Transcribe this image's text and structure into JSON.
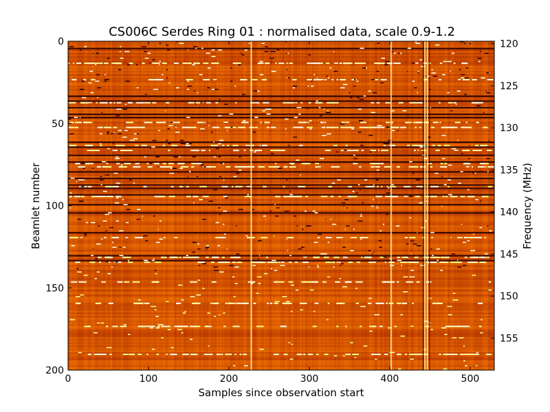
{
  "chart_data": {
    "type": "heatmap",
    "title": "CS006C Serdes Ring 01 : normalised data, scale 0.9-1.2",
    "xlabel": "Samples since observation start",
    "ylabel": "Beamlet number",
    "y2label": "Frequency (MHz)",
    "xlim": [
      0,
      530
    ],
    "ylim": [
      0,
      200
    ],
    "y2lim": [
      119.7,
      158.8
    ],
    "xticks": [
      0,
      100,
      200,
      300,
      400,
      500
    ],
    "xtick_labels": [
      "0",
      "100",
      "200",
      "300",
      "400",
      "500"
    ],
    "yticks": [
      0,
      50,
      100,
      150,
      200
    ],
    "ytick_labels": [
      "0",
      "50",
      "100",
      "150",
      "200"
    ],
    "y2ticks": [
      120,
      125,
      130,
      135,
      140,
      145,
      150,
      155
    ],
    "y2tick_labels": [
      "120",
      "125",
      "130",
      "135",
      "140",
      "145",
      "150",
      "155"
    ],
    "color_scale": {
      "min": 0.9,
      "max": 1.2,
      "colormap": "afmhot"
    },
    "dark_rows": [
      4,
      33,
      36,
      40,
      44,
      46,
      61,
      64,
      69,
      73,
      79,
      83,
      87,
      89,
      93,
      99,
      104,
      116,
      130,
      133
    ],
    "bright_rows": [
      13,
      23,
      37,
      49,
      52,
      63,
      66,
      74,
      76,
      88,
      94,
      119,
      131,
      134,
      146,
      159,
      173,
      190
    ],
    "bright_columns": [
      227,
      401,
      443,
      446
    ],
    "dark_columns": [
      441,
      449
    ]
  }
}
